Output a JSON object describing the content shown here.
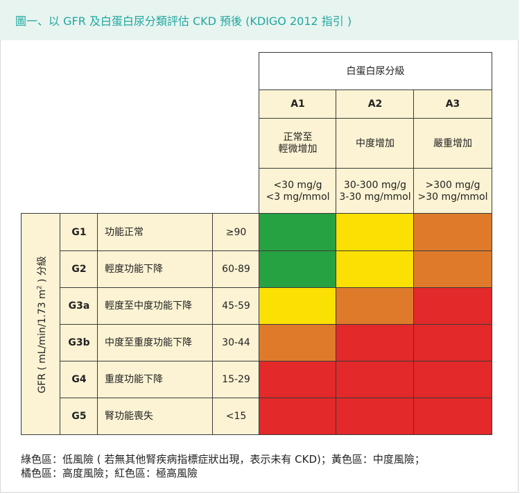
{
  "title": "圖一、以 GFR 及白蛋白尿分類評估 CKD 預後 (KDIGO 2012 指引 )",
  "colors": {
    "green": "#27a243",
    "yellow": "#fbe003",
    "orange": "#df7a2a",
    "red": "#e3292a",
    "cream": "#fbf3d3",
    "title_teal": "#21a7a0"
  },
  "albuminuria": {
    "header": "白蛋白尿分級",
    "columns": [
      {
        "code": "A1",
        "label": "正常至\n輕微增加",
        "range": "<30 mg/g\n<3 mg/mmol"
      },
      {
        "code": "A2",
        "label": "中度增加",
        "range": "30-300 mg/g\n3-30 mg/mmol"
      },
      {
        "code": "A3",
        "label": "嚴重增加",
        "range": ">300 mg/g\n>30 mg/mmol"
      }
    ]
  },
  "gfr": {
    "axis_label_prefix": "GFR ( mL/min/1.73 m",
    "axis_label_sup": "2",
    "axis_label_suffix": " ) 分級",
    "rows": [
      {
        "code": "G1",
        "desc": "功能正常",
        "range": "≥90",
        "risk": [
          "green",
          "yellow",
          "orange"
        ]
      },
      {
        "code": "G2",
        "desc": "輕度功能下降",
        "range": "60-89",
        "risk": [
          "green",
          "yellow",
          "orange"
        ]
      },
      {
        "code": "G3a",
        "desc": "輕度至中度功能下降",
        "range": "45-59",
        "risk": [
          "yellow",
          "orange",
          "red"
        ]
      },
      {
        "code": "G3b",
        "desc": "中度至重度功能下降",
        "range": "30-44",
        "risk": [
          "orange",
          "red",
          "red"
        ]
      },
      {
        "code": "G4",
        "desc": "重度功能下降",
        "range": "15-29",
        "risk": [
          "red",
          "red",
          "red"
        ]
      },
      {
        "code": "G5",
        "desc": "腎功能喪失",
        "range": "<15",
        "risk": [
          "red",
          "red",
          "red"
        ]
      }
    ]
  },
  "footnote": {
    "line1": "綠色區：低風險 ( 若無其他腎疾病指標症狀出現，表示未有 CKD)；黃色區：中度風險；",
    "line2": "橘色區：高度風險；紅色區：極高風險"
  }
}
